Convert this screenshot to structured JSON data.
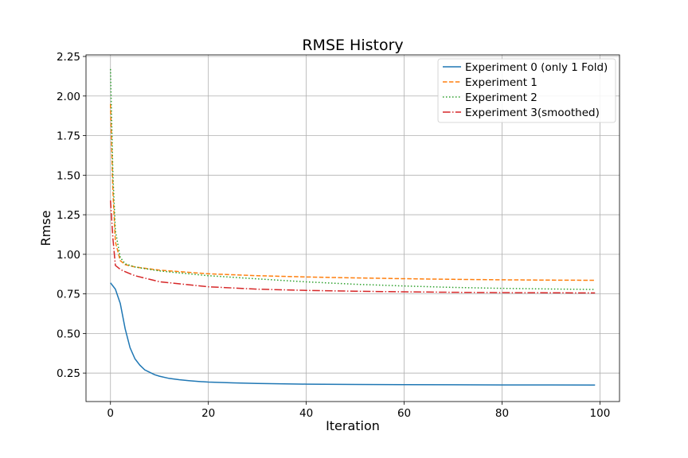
{
  "chart_data": {
    "type": "line",
    "title": "RMSE History",
    "xlabel": "Iteration",
    "ylabel": "Rmse",
    "xlim": [
      -5,
      104
    ],
    "ylim": [
      0.07,
      2.26
    ],
    "xticks": [
      0,
      20,
      40,
      60,
      80,
      100
    ],
    "yticks": [
      0.25,
      0.5,
      0.75,
      1.0,
      1.25,
      1.5,
      1.75,
      2.0,
      2.25
    ],
    "xtick_labels": [
      "0",
      "20",
      "40",
      "60",
      "80",
      "100"
    ],
    "ytick_labels": [
      "0.25",
      "0.50",
      "0.75",
      "1.00",
      "1.25",
      "1.50",
      "1.75",
      "2.00",
      "2.25"
    ],
    "grid": true,
    "legend_position": "top-right",
    "series": [
      {
        "name": "Experiment 0 (only 1 Fold)",
        "color": "#1f77b4",
        "style": "solid",
        "x": [
          0,
          1,
          2,
          3,
          4,
          5,
          6,
          7,
          8,
          9,
          10,
          12,
          14,
          16,
          18,
          20,
          25,
          30,
          40,
          50,
          60,
          70,
          80,
          90,
          99
        ],
        "y": [
          0.82,
          0.78,
          0.69,
          0.53,
          0.41,
          0.34,
          0.3,
          0.27,
          0.255,
          0.24,
          0.23,
          0.216,
          0.208,
          0.202,
          0.197,
          0.193,
          0.188,
          0.184,
          0.18,
          0.178,
          0.177,
          0.176,
          0.175,
          0.175,
          0.174
        ]
      },
      {
        "name": "Experiment 1",
        "color": "#ff7f0e",
        "style": "dashed",
        "x": [
          0,
          0.5,
          1,
          2,
          3,
          5,
          10,
          20,
          30,
          40,
          50,
          60,
          70,
          80,
          90,
          99
        ],
        "y": [
          1.95,
          1.4,
          1.08,
          0.96,
          0.935,
          0.92,
          0.9,
          0.877,
          0.865,
          0.857,
          0.851,
          0.846,
          0.842,
          0.839,
          0.837,
          0.836
        ]
      },
      {
        "name": "Experiment 2",
        "color": "#2ca02c",
        "style": "dotted",
        "x": [
          0,
          0.5,
          1,
          2,
          3,
          5,
          10,
          20,
          30,
          40,
          50,
          60,
          70,
          80,
          90,
          99
        ],
        "y": [
          2.17,
          1.5,
          1.15,
          0.98,
          0.94,
          0.92,
          0.895,
          0.865,
          0.845,
          0.826,
          0.811,
          0.8,
          0.791,
          0.785,
          0.781,
          0.778
        ]
      },
      {
        "name": "Experiment 3(smoothed)",
        "color": "#d62728",
        "style": "dashdot",
        "x": [
          0,
          0.5,
          1,
          2,
          3,
          5,
          10,
          20,
          30,
          40,
          50,
          60,
          70,
          80,
          90,
          99
        ],
        "y": [
          1.34,
          1.1,
          0.93,
          0.905,
          0.89,
          0.865,
          0.827,
          0.795,
          0.78,
          0.772,
          0.767,
          0.763,
          0.76,
          0.758,
          0.757,
          0.756
        ]
      }
    ]
  }
}
